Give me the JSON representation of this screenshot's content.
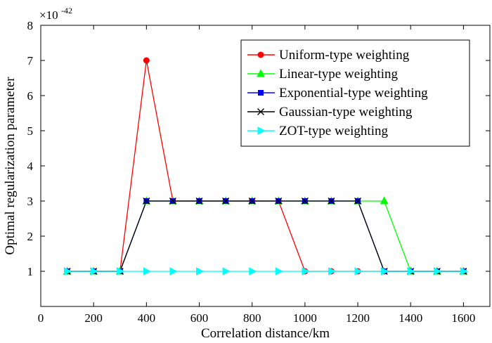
{
  "chart_data": {
    "type": "line",
    "xlabel": "Correlation distance/km",
    "ylabel": "Optimal regularization parameter",
    "y_multiplier_base": "×10",
    "y_multiplier_exponent": "-42",
    "xlim": [
      0,
      1700
    ],
    "ylim": [
      0,
      8
    ],
    "xticks": [
      0,
      200,
      400,
      600,
      800,
      1000,
      1200,
      1400,
      1600
    ],
    "yticks": [
      1,
      2,
      3,
      4,
      5,
      6,
      7,
      8
    ],
    "grid": false,
    "legend_position": "top-right",
    "x": [
      100,
      200,
      300,
      400,
      500,
      600,
      700,
      800,
      900,
      1000,
      1100,
      1200,
      1300,
      1400,
      1500,
      1600
    ],
    "series": [
      {
        "name": "Uniform-type weighting",
        "color": "#ff0000",
        "marker": "circle",
        "values": [
          1,
          1,
          1,
          7,
          3,
          3,
          3,
          3,
          3,
          1,
          1,
          1,
          1,
          1,
          1,
          1
        ]
      },
      {
        "name": "Linear-type weighting",
        "color": "#00ff00",
        "marker": "triangle-up",
        "values": [
          1,
          1,
          1,
          3,
          3,
          3,
          3,
          3,
          3,
          3,
          3,
          3,
          3,
          1,
          1,
          1
        ]
      },
      {
        "name": "Exponential-type weighting",
        "color": "#0000ff",
        "marker": "square",
        "values": [
          1,
          1,
          1,
          3,
          3,
          3,
          3,
          3,
          3,
          3,
          3,
          3,
          1,
          1,
          1,
          1
        ]
      },
      {
        "name": "Gaussian-type weighting",
        "color": "#000000",
        "marker": "x",
        "values": [
          1,
          1,
          1,
          3,
          3,
          3,
          3,
          3,
          3,
          3,
          3,
          3,
          1,
          1,
          1,
          1
        ]
      },
      {
        "name": "ZOT-type weighting",
        "color": "#00ffff",
        "marker": "triangle-right",
        "values": [
          1,
          1,
          1,
          1,
          1,
          1,
          1,
          1,
          1,
          1,
          1,
          1,
          1,
          1,
          1,
          1
        ]
      }
    ]
  }
}
